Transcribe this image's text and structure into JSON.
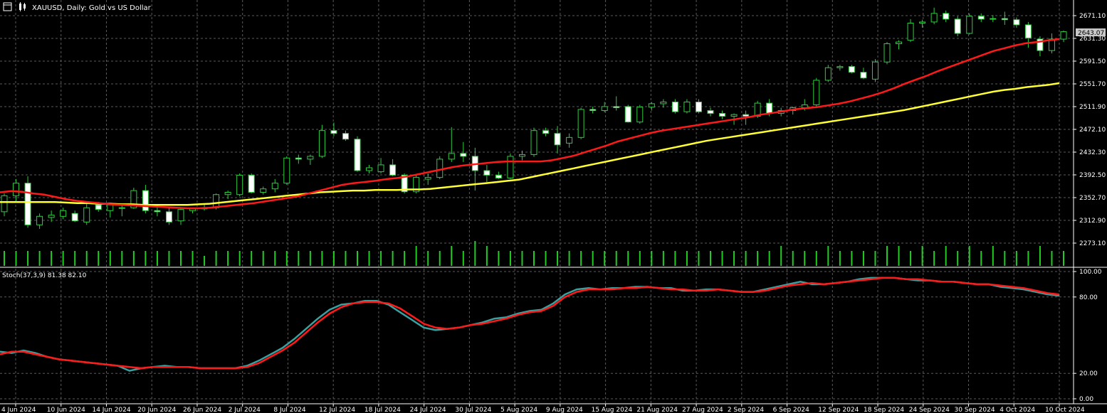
{
  "header": {
    "title": "XAUUSD, Daily:  Gold vs US Dollar",
    "icons": [
      "chart-window-icon",
      "candles-icon"
    ]
  },
  "indicator": {
    "label": "Stoch(37,3,9) 81.38 82.10"
  },
  "current_price": {
    "label": "2643.07"
  },
  "colors": {
    "background": "#000000",
    "grid": "#5a5a5a",
    "bull_candle": "#000000",
    "bear_candle": "#ffffff",
    "wick": "#2ecc40",
    "ma_fast": "#ff1a1a",
    "ma_slow": "#ffff33",
    "volume": "#22cc22",
    "stoch_main": "#3aa0a0",
    "stoch_signal": "#ff1a1a"
  },
  "chart_data": [
    {
      "type": "candlestick",
      "title": "XAUUSD, Daily:  Gold vs US Dollar",
      "y_tick_labels": [
        "2671.10",
        "2631.30",
        "2591.50",
        "2551.70",
        "2511.90",
        "2472.10",
        "2432.30",
        "2392.50",
        "2352.70",
        "2312.90",
        "2273.10"
      ],
      "ylim": [
        2250,
        2690
      ],
      "x_tick_labels": [
        "4 Jun 2024",
        "10 Jun 2024",
        "14 Jun 2024",
        "20 Jun 2024",
        "26 Jun 2024",
        "2 Jul 2024",
        "8 Jul 2024",
        "12 Jul 2024",
        "18 Jul 2024",
        "24 Jul 2024",
        "30 Jul 2024",
        "5 Aug 2024",
        "9 Aug 2024",
        "15 Aug 2024",
        "21 Aug 2024",
        "27 Aug 2024",
        "2 Sep 2024",
        "6 Sep 2024",
        "12 Sep 2024",
        "18 Sep 2024",
        "24 Sep 2024",
        "30 Sep 2024",
        "4 Oct 2024",
        "10 Oct 2024"
      ],
      "candles": [
        {
          "o": 2328,
          "h": 2360,
          "l": 2320,
          "c": 2356
        },
        {
          "o": 2356,
          "h": 2385,
          "l": 2345,
          "c": 2378
        },
        {
          "o": 2378,
          "h": 2390,
          "l": 2300,
          "c": 2305
        },
        {
          "o": 2305,
          "h": 2325,
          "l": 2298,
          "c": 2320
        },
        {
          "o": 2318,
          "h": 2330,
          "l": 2310,
          "c": 2322
        },
        {
          "o": 2320,
          "h": 2335,
          "l": 2315,
          "c": 2330
        },
        {
          "o": 2325,
          "h": 2330,
          "l": 2310,
          "c": 2312
        },
        {
          "o": 2310,
          "h": 2345,
          "l": 2305,
          "c": 2335
        },
        {
          "o": 2340,
          "h": 2345,
          "l": 2328,
          "c": 2332
        },
        {
          "o": 2330,
          "h": 2342,
          "l": 2318,
          "c": 2340
        },
        {
          "o": 2335,
          "h": 2340,
          "l": 2320,
          "c": 2335
        },
        {
          "o": 2335,
          "h": 2370,
          "l": 2333,
          "c": 2365
        },
        {
          "o": 2365,
          "h": 2375,
          "l": 2325,
          "c": 2330
        },
        {
          "o": 2330,
          "h": 2340,
          "l": 2320,
          "c": 2328
        },
        {
          "o": 2328,
          "h": 2335,
          "l": 2305,
          "c": 2310
        },
        {
          "o": 2312,
          "h": 2335,
          "l": 2305,
          "c": 2332
        },
        {
          "o": 2330,
          "h": 2335,
          "l": 2325,
          "c": 2333
        },
        {
          "o": 2333,
          "h": 2340,
          "l": 2330,
          "c": 2335
        },
        {
          "o": 2335,
          "h": 2360,
          "l": 2332,
          "c": 2358
        },
        {
          "o": 2358,
          "h": 2365,
          "l": 2350,
          "c": 2362
        },
        {
          "o": 2358,
          "h": 2395,
          "l": 2355,
          "c": 2392
        },
        {
          "o": 2392,
          "h": 2395,
          "l": 2360,
          "c": 2362
        },
        {
          "o": 2362,
          "h": 2372,
          "l": 2358,
          "c": 2368
        },
        {
          "o": 2368,
          "h": 2385,
          "l": 2362,
          "c": 2378
        },
        {
          "o": 2378,
          "h": 2425,
          "l": 2375,
          "c": 2422
        },
        {
          "o": 2422,
          "h": 2428,
          "l": 2412,
          "c": 2420
        },
        {
          "o": 2420,
          "h": 2428,
          "l": 2410,
          "c": 2425
        },
        {
          "o": 2425,
          "h": 2480,
          "l": 2422,
          "c": 2470
        },
        {
          "o": 2470,
          "h": 2484,
          "l": 2460,
          "c": 2465
        },
        {
          "o": 2465,
          "h": 2470,
          "l": 2452,
          "c": 2455
        },
        {
          "o": 2455,
          "h": 2460,
          "l": 2398,
          "c": 2400
        },
        {
          "o": 2400,
          "h": 2410,
          "l": 2395,
          "c": 2405
        },
        {
          "o": 2398,
          "h": 2422,
          "l": 2395,
          "c": 2410
        },
        {
          "o": 2410,
          "h": 2420,
          "l": 2390,
          "c": 2392
        },
        {
          "o": 2392,
          "h": 2395,
          "l": 2360,
          "c": 2363
        },
        {
          "o": 2363,
          "h": 2392,
          "l": 2360,
          "c": 2388
        },
        {
          "o": 2385,
          "h": 2395,
          "l": 2375,
          "c": 2388
        },
        {
          "o": 2388,
          "h": 2425,
          "l": 2385,
          "c": 2420
        },
        {
          "o": 2420,
          "h": 2476,
          "l": 2415,
          "c": 2430
        },
        {
          "o": 2430,
          "h": 2450,
          "l": 2415,
          "c": 2425
        },
        {
          "o": 2425,
          "h": 2440,
          "l": 2365,
          "c": 2400
        },
        {
          "o": 2400,
          "h": 2410,
          "l": 2380,
          "c": 2392
        },
        {
          "o": 2392,
          "h": 2398,
          "l": 2385,
          "c": 2387
        },
        {
          "o": 2387,
          "h": 2430,
          "l": 2385,
          "c": 2425
        },
        {
          "o": 2425,
          "h": 2435,
          "l": 2418,
          "c": 2428
        },
        {
          "o": 2428,
          "h": 2475,
          "l": 2424,
          "c": 2470
        },
        {
          "o": 2470,
          "h": 2475,
          "l": 2460,
          "c": 2465
        },
        {
          "o": 2465,
          "h": 2478,
          "l": 2430,
          "c": 2445
        },
        {
          "o": 2448,
          "h": 2465,
          "l": 2440,
          "c": 2458
        },
        {
          "o": 2458,
          "h": 2510,
          "l": 2455,
          "c": 2507
        },
        {
          "o": 2507,
          "h": 2512,
          "l": 2500,
          "c": 2505
        },
        {
          "o": 2505,
          "h": 2520,
          "l": 2502,
          "c": 2512
        },
        {
          "o": 2512,
          "h": 2530,
          "l": 2505,
          "c": 2510
        },
        {
          "o": 2512,
          "h": 2515,
          "l": 2484,
          "c": 2485
        },
        {
          "o": 2485,
          "h": 2515,
          "l": 2482,
          "c": 2511
        },
        {
          "o": 2511,
          "h": 2520,
          "l": 2505,
          "c": 2517
        },
        {
          "o": 2517,
          "h": 2525,
          "l": 2510,
          "c": 2520
        },
        {
          "o": 2520,
          "h": 2525,
          "l": 2500,
          "c": 2503
        },
        {
          "o": 2503,
          "h": 2525,
          "l": 2500,
          "c": 2520
        },
        {
          "o": 2520,
          "h": 2525,
          "l": 2500,
          "c": 2503
        },
        {
          "o": 2505,
          "h": 2510,
          "l": 2495,
          "c": 2500
        },
        {
          "o": 2500,
          "h": 2505,
          "l": 2490,
          "c": 2495
        },
        {
          "o": 2495,
          "h": 2500,
          "l": 2480,
          "c": 2498
        },
        {
          "o": 2498,
          "h": 2505,
          "l": 2480,
          "c": 2495
        },
        {
          "o": 2495,
          "h": 2522,
          "l": 2492,
          "c": 2518
        },
        {
          "o": 2518,
          "h": 2525,
          "l": 2495,
          "c": 2500
        },
        {
          "o": 2500,
          "h": 2510,
          "l": 2495,
          "c": 2505
        },
        {
          "o": 2505,
          "h": 2512,
          "l": 2498,
          "c": 2510
        },
        {
          "o": 2510,
          "h": 2525,
          "l": 2505,
          "c": 2515
        },
        {
          "o": 2515,
          "h": 2562,
          "l": 2512,
          "c": 2558
        },
        {
          "o": 2558,
          "h": 2585,
          "l": 2555,
          "c": 2580
        },
        {
          "o": 2580,
          "h": 2585,
          "l": 2575,
          "c": 2582
        },
        {
          "o": 2582,
          "h": 2585,
          "l": 2570,
          "c": 2572
        },
        {
          "o": 2572,
          "h": 2580,
          "l": 2560,
          "c": 2562
        },
        {
          "o": 2560,
          "h": 2595,
          "l": 2555,
          "c": 2590
        },
        {
          "o": 2590,
          "h": 2625,
          "l": 2586,
          "c": 2622
        },
        {
          "o": 2622,
          "h": 2628,
          "l": 2612,
          "c": 2625
        },
        {
          "o": 2628,
          "h": 2665,
          "l": 2625,
          "c": 2658
        },
        {
          "o": 2658,
          "h": 2664,
          "l": 2650,
          "c": 2660
        },
        {
          "o": 2660,
          "h": 2685,
          "l": 2656,
          "c": 2675
        },
        {
          "o": 2675,
          "h": 2680,
          "l": 2660,
          "c": 2665
        },
        {
          "o": 2665,
          "h": 2670,
          "l": 2635,
          "c": 2640
        },
        {
          "o": 2640,
          "h": 2675,
          "l": 2638,
          "c": 2670
        },
        {
          "o": 2670,
          "h": 2675,
          "l": 2660,
          "c": 2665
        },
        {
          "o": 2665,
          "h": 2672,
          "l": 2660,
          "c": 2666
        },
        {
          "o": 2666,
          "h": 2678,
          "l": 2655,
          "c": 2664
        },
        {
          "o": 2664,
          "h": 2668,
          "l": 2650,
          "c": 2655
        },
        {
          "o": 2655,
          "h": 2660,
          "l": 2615,
          "c": 2632
        },
        {
          "o": 2630,
          "h": 2635,
          "l": 2600,
          "c": 2610
        },
        {
          "o": 2610,
          "h": 2640,
          "l": 2605,
          "c": 2630
        },
        {
          "o": 2630,
          "h": 2645,
          "l": 2625,
          "c": 2643
        }
      ],
      "ma_fast_values": [
        2362,
        2364,
        2363,
        2360,
        2358,
        2354,
        2350,
        2347,
        2345,
        2343,
        2341,
        2340,
        2339,
        2338,
        2337,
        2336,
        2335,
        2334,
        2334,
        2335,
        2337,
        2339,
        2341,
        2343,
        2346,
        2349,
        2352,
        2355,
        2360,
        2365,
        2370,
        2375,
        2378,
        2380,
        2382,
        2385,
        2387,
        2390,
        2394,
        2398,
        2402,
        2406,
        2409,
        2411,
        2413,
        2415,
        2416,
        2416,
        2416,
        2416,
        2418,
        2422,
        2426,
        2432,
        2438,
        2444,
        2451,
        2456,
        2461,
        2466,
        2470,
        2473,
        2476,
        2479,
        2482,
        2485,
        2488,
        2491,
        2494,
        2498,
        2501,
        2504,
        2507,
        2509,
        2511,
        2514,
        2517,
        2521,
        2526,
        2531,
        2537,
        2544,
        2552,
        2559,
        2566,
        2574,
        2581,
        2588,
        2595,
        2602,
        2609,
        2614,
        2619,
        2623,
        2625,
        2628,
        2630
      ],
      "ma_slow_values": [
        2345,
        2345,
        2345,
        2345,
        2345,
        2345,
        2344,
        2343,
        2343,
        2342,
        2342,
        2341,
        2341,
        2340,
        2340,
        2340,
        2340,
        2340,
        2341,
        2342,
        2344,
        2346,
        2348,
        2350,
        2352,
        2354,
        2356,
        2358,
        2360,
        2362,
        2363,
        2364,
        2365,
        2365,
        2366,
        2366,
        2366,
        2367,
        2367,
        2368,
        2370,
        2372,
        2374,
        2376,
        2378,
        2380,
        2382,
        2384,
        2388,
        2392,
        2396,
        2400,
        2404,
        2408,
        2412,
        2416,
        2420,
        2424,
        2428,
        2432,
        2436,
        2440,
        2444,
        2448,
        2452,
        2455,
        2458,
        2461,
        2464,
        2467,
        2470,
        2473,
        2476,
        2479,
        2482,
        2485,
        2488,
        2491,
        2494,
        2497,
        2500,
        2503,
        2506,
        2510,
        2514,
        2518,
        2522,
        2526,
        2530,
        2534,
        2538,
        2541,
        2543,
        2546,
        2548,
        2550,
        2553
      ]
    },
    {
      "type": "bar",
      "title": "",
      "values": [
        3,
        3,
        3,
        3,
        3,
        3,
        3,
        3,
        3,
        3,
        3,
        3,
        3,
        3,
        3,
        3,
        3,
        2,
        3,
        3,
        3,
        3,
        3,
        3,
        3,
        3,
        3,
        3,
        3,
        3,
        3,
        3,
        3,
        3,
        3,
        4,
        3,
        3,
        4,
        3,
        5,
        4,
        3,
        3,
        3,
        3,
        3,
        3,
        3,
        3,
        3,
        3,
        3,
        3,
        3,
        3,
        3,
        3,
        3,
        3,
        3,
        3,
        3,
        3,
        3,
        3,
        4,
        3,
        3,
        3,
        4,
        3,
        3,
        3,
        3,
        4,
        4,
        3,
        4,
        3,
        4,
        3,
        4,
        3,
        4,
        3,
        3,
        3,
        4,
        3,
        3,
        3,
        3,
        1
      ]
    },
    {
      "type": "line",
      "title": "Stoch(37,3,9) 81.38 82.10",
      "y_tick_labels": [
        "100.00",
        "80.00",
        "20.00",
        "0.00"
      ],
      "ylim": [
        0,
        100
      ],
      "series": [
        {
          "values": [
            37,
            36,
            38,
            36,
            33,
            31,
            30,
            29,
            28,
            27,
            26,
            22,
            24,
            25,
            26,
            25,
            25,
            24,
            24,
            24,
            24,
            26,
            30,
            35,
            40,
            47,
            55,
            63,
            70,
            74,
            75,
            77,
            77,
            74,
            68,
            62,
            56,
            54,
            55,
            56,
            58,
            60,
            63,
            64,
            67,
            69,
            70,
            75,
            82,
            86,
            87,
            86,
            87,
            87,
            88,
            88,
            87,
            87,
            85,
            85,
            86,
            86,
            85,
            84,
            84,
            86,
            88,
            90,
            92,
            90,
            90,
            91,
            92,
            94,
            95,
            95,
            95,
            94,
            93,
            93,
            92,
            92,
            91,
            90,
            90,
            88,
            87,
            86,
            84,
            82,
            81
          ]
        },
        {
          "values": [
            35,
            37,
            37,
            35,
            33,
            31,
            30,
            29,
            28,
            27,
            26,
            25,
            24,
            25,
            25,
            25,
            25,
            24,
            24,
            24,
            24,
            25,
            28,
            33,
            38,
            44,
            52,
            60,
            67,
            72,
            75,
            76,
            76,
            75,
            71,
            65,
            59,
            56,
            55,
            56,
            58,
            59,
            61,
            63,
            66,
            68,
            69,
            73,
            80,
            84,
            86,
            86,
            86,
            87,
            87,
            88,
            87,
            86,
            86,
            85,
            85,
            86,
            85,
            84,
            84,
            85,
            87,
            89,
            90,
            91,
            90,
            91,
            92,
            93,
            94,
            95,
            95,
            94,
            94,
            93,
            92,
            92,
            91,
            90,
            90,
            89,
            88,
            87,
            85,
            83,
            82
          ]
        }
      ]
    }
  ]
}
